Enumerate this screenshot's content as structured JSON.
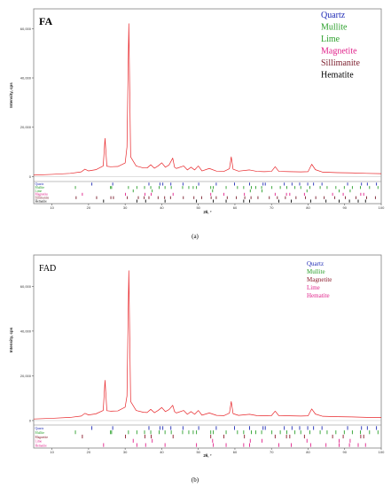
{
  "chart_data": [
    {
      "type": "line",
      "panel_label": "FA",
      "caption": "(a)",
      "xlabel": "2θ, °",
      "ylabel": "Intensity, cps",
      "xlim": [
        5,
        100
      ],
      "ylim": [
        -2000,
        68000
      ],
      "xticks": [
        "10",
        "20",
        "30",
        "40",
        "50",
        "60",
        "70",
        "80",
        "90",
        "100"
      ],
      "yticks": [
        "0",
        "20,000",
        "40,000",
        "60,000"
      ],
      "series": [
        {
          "color": "#e8262a",
          "x": [
            5,
            10,
            15,
            18,
            19,
            20,
            22,
            24,
            24.5,
            25,
            26,
            28,
            30,
            30.5,
            31,
            31.5,
            33,
            35,
            36,
            37,
            38,
            39,
            40,
            41,
            42,
            43,
            43.5,
            44,
            46,
            47,
            48,
            49,
            50,
            51,
            53,
            55,
            57,
            58.5,
            59,
            59.5,
            61,
            64,
            66,
            68,
            70,
            71,
            72,
            75,
            78,
            80,
            81,
            82,
            84,
            88,
            92,
            96,
            100
          ],
          "y": [
            600,
            900,
            1300,
            1900,
            3000,
            2300,
            2800,
            4300,
            15500,
            4200,
            4000,
            4100,
            5500,
            12000,
            62000,
            8000,
            4300,
            3500,
            3500,
            4800,
            3400,
            4300,
            5600,
            3800,
            4700,
            7500,
            3800,
            3300,
            4300,
            2700,
            3800,
            2700,
            4300,
            2300,
            3300,
            2200,
            2100,
            3200,
            8000,
            3000,
            2200,
            2700,
            2100,
            2000,
            2100,
            4000,
            2100,
            2000,
            1900,
            2000,
            5000,
            2800,
            1800,
            1600,
            1500,
            1300,
            1200
          ]
        }
      ],
      "phases": [
        {
          "name": "Quartz",
          "color": "#1f2bb5",
          "positions": [
            20.9,
            26.6,
            36.5,
            39.5,
            40.3,
            42.5,
            45.8,
            50.1,
            54.9,
            59.9,
            64.0,
            67.7,
            68.3,
            73.5,
            75.6,
            77.7,
            79.9,
            81.5,
            83.8,
            90.8,
            94.6,
            96.2,
            98.7
          ]
        },
        {
          "name": "Mullite",
          "color": "#2ca02c",
          "positions": [
            16.4,
            26.0,
            26.3,
            30.9,
            33.2,
            35.3,
            37.0,
            39.3,
            40.9,
            42.6,
            45.7,
            47.4,
            48.6,
            49.5,
            53.4,
            54.1,
            57.6,
            60.7,
            62.4,
            64.5,
            65.7,
            67.3,
            70.1,
            72.4,
            74.2,
            76.4,
            78.0,
            80.5,
            83.3,
            85.2,
            87.6,
            89.9,
            92.1,
            94.3,
            96.8,
            99.1
          ]
        },
        {
          "name": "Lime",
          "color": "#2ca02c",
          "positions": [
            32.2,
            37.4,
            53.9,
            64.2,
            67.4,
            79.7,
            88.5,
            91.5
          ]
        },
        {
          "name": "Magnetite",
          "color": "#e0218a",
          "positions": [
            18.3,
            30.1,
            35.4,
            37.1,
            43.1,
            53.4,
            57.0,
            62.6,
            71.0,
            74.1,
            75.0,
            79.0,
            86.7,
            89.6,
            94.4,
            95.2
          ]
        },
        {
          "name": "Sillimanite",
          "color": "#7b1e2d",
          "positions": [
            16.6,
            22.2,
            26.1,
            26.8,
            30.6,
            33.6,
            35.2,
            36.5,
            39.0,
            40.8,
            42.4,
            45.9,
            48.8,
            50.9,
            53.5,
            54.9,
            57.9,
            60.4,
            62.7,
            64.4,
            66.3,
            69.4,
            71.6,
            73.8,
            76.7,
            79.3,
            82.1,
            84.4,
            87.3,
            90.2,
            93.1,
            96.0,
            98.4
          ]
        },
        {
          "name": "Hematite",
          "color": "#000000",
          "positions": [
            24.1,
            33.2,
            35.6,
            40.9,
            49.5,
            54.1,
            57.6,
            62.4,
            64.0,
            72.0,
            75.4,
            80.7,
            84.9,
            88.5,
            91.3,
            93.7,
            95.7
          ]
        }
      ]
    },
    {
      "type": "line",
      "panel_label": "FAD",
      "caption": "(b)",
      "xlabel": "2θ, °",
      "ylabel": "Intensity, cps",
      "xlim": [
        5,
        100
      ],
      "ylim": [
        -2000,
        74000
      ],
      "xticks": [
        "10",
        "20",
        "30",
        "40",
        "50",
        "60",
        "70",
        "80",
        "90",
        "100"
      ],
      "yticks": [
        "0",
        "20,000",
        "40,000",
        "60,000"
      ],
      "series": [
        {
          "color": "#e8262a",
          "x": [
            5,
            10,
            15,
            18,
            19,
            20,
            22,
            24,
            24.5,
            25,
            26,
            28,
            30,
            30.5,
            31,
            31.5,
            33,
            35,
            36,
            37,
            38,
            39,
            40,
            41,
            42,
            43,
            43.5,
            44,
            46,
            47,
            48,
            49,
            50,
            51,
            53,
            55,
            57,
            58.5,
            59,
            59.5,
            61,
            64,
            66,
            68,
            70,
            71,
            72,
            75,
            78,
            80,
            81,
            82,
            84,
            88,
            92,
            96,
            100
          ],
          "y": [
            700,
            1000,
            1400,
            2000,
            3200,
            2500,
            3000,
            4500,
            18000,
            4400,
            4200,
            4300,
            6000,
            11000,
            67000,
            8500,
            4500,
            3700,
            3600,
            5000,
            3500,
            4500,
            5800,
            4000,
            4900,
            6800,
            4000,
            3400,
            4500,
            2800,
            4000,
            2800,
            4500,
            2400,
            3400,
            2300,
            2200,
            3300,
            8500,
            3100,
            2300,
            2800,
            2200,
            2100,
            2200,
            4200,
            2200,
            2100,
            2000,
            2100,
            5200,
            2900,
            1900,
            1700,
            1600,
            1400,
            1300
          ]
        }
      ],
      "phases": [
        {
          "name": "Quartz",
          "color": "#1f2bb5",
          "positions": [
            20.9,
            26.6,
            36.5,
            39.5,
            40.3,
            42.5,
            45.8,
            50.1,
            54.9,
            59.9,
            64.0,
            67.7,
            68.3,
            73.5,
            75.6,
            77.7,
            79.9,
            81.5,
            83.8,
            90.8,
            94.6,
            96.2,
            98.7
          ]
        },
        {
          "name": "Mullite",
          "color": "#2ca02c",
          "positions": [
            16.4,
            26.0,
            26.3,
            30.9,
            33.2,
            35.3,
            37.0,
            39.3,
            40.9,
            42.6,
            45.7,
            47.4,
            48.6,
            49.5,
            53.4,
            54.1,
            57.6,
            60.7,
            62.4,
            64.5,
            65.7,
            67.3,
            70.1,
            72.4,
            74.2,
            76.4,
            78.0,
            80.5,
            83.3,
            85.2,
            87.6,
            89.9,
            92.1,
            94.3,
            96.8,
            99.1
          ]
        },
        {
          "name": "Magnetite",
          "color": "#8b1a2b",
          "positions": [
            18.3,
            30.1,
            35.4,
            37.1,
            43.1,
            53.4,
            57.0,
            62.6,
            71.0,
            74.1,
            75.0,
            79.0,
            86.7,
            89.6,
            94.4,
            95.2
          ]
        },
        {
          "name": "Lime",
          "color": "#e0218a",
          "positions": [
            32.2,
            37.4,
            53.9,
            64.2,
            67.4,
            79.7,
            88.5,
            91.5
          ]
        },
        {
          "name": "Hematite",
          "color": "#e0218a",
          "positions": [
            24.1,
            33.2,
            35.6,
            40.9,
            49.5,
            54.1,
            57.6,
            62.4,
            64.0,
            72.0,
            75.4,
            80.7,
            84.9,
            88.5,
            91.3,
            93.7,
            95.7
          ]
        }
      ]
    }
  ]
}
